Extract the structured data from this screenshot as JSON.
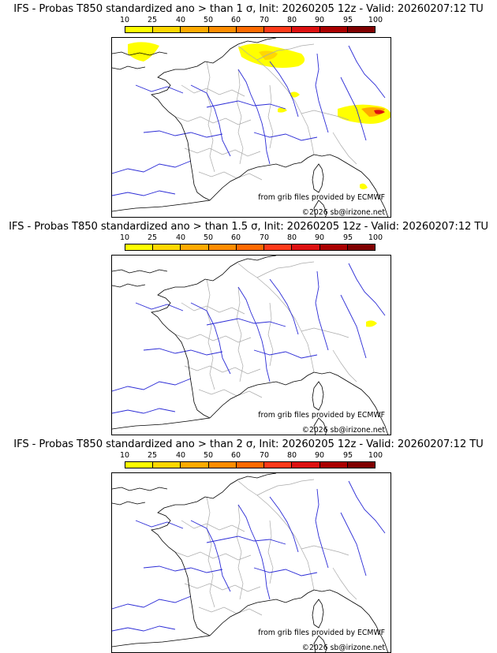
{
  "panels": [
    {
      "title": "IFS - Probas T850  standardized ano > than 1 σ, Init: 20260205 12z - Valid: 20260207:12 TU",
      "source_credit": "from grib files provided by ECMWF",
      "copyright": "©2026 sb@irizone.net",
      "shading": "many"
    },
    {
      "title": "IFS - Probas T850  standardized ano > than 1.5 σ, Init: 20260205 12z - Valid: 20260207:12 TU",
      "source_credit": "from grib files provided by ECMWF",
      "copyright": "©2026 sb@irizone.net",
      "shading": "few"
    },
    {
      "title": "IFS - Probas T850  standardized ano > than 2 σ, Init: 20260205 12z - Valid: 20260207:12 TU",
      "source_credit": "from grib files provided by ECMWF",
      "copyright": "©2026 sb@irizone.net",
      "shading": "none"
    }
  ],
  "colorbar": {
    "labels": [
      "10",
      "25",
      "40",
      "50",
      "60",
      "70",
      "80",
      "90",
      "95",
      "100"
    ],
    "colors": [
      "#ffff00",
      "#ffd700",
      "#ffaa00",
      "#ff8c00",
      "#ff6a00",
      "#ff3a1a",
      "#dd1111",
      "#aa0000",
      "#800000"
    ]
  },
  "map_colors": {
    "coast": "#000000",
    "rivers": "#2b2bd6",
    "borders": "#aaaaaa"
  }
}
